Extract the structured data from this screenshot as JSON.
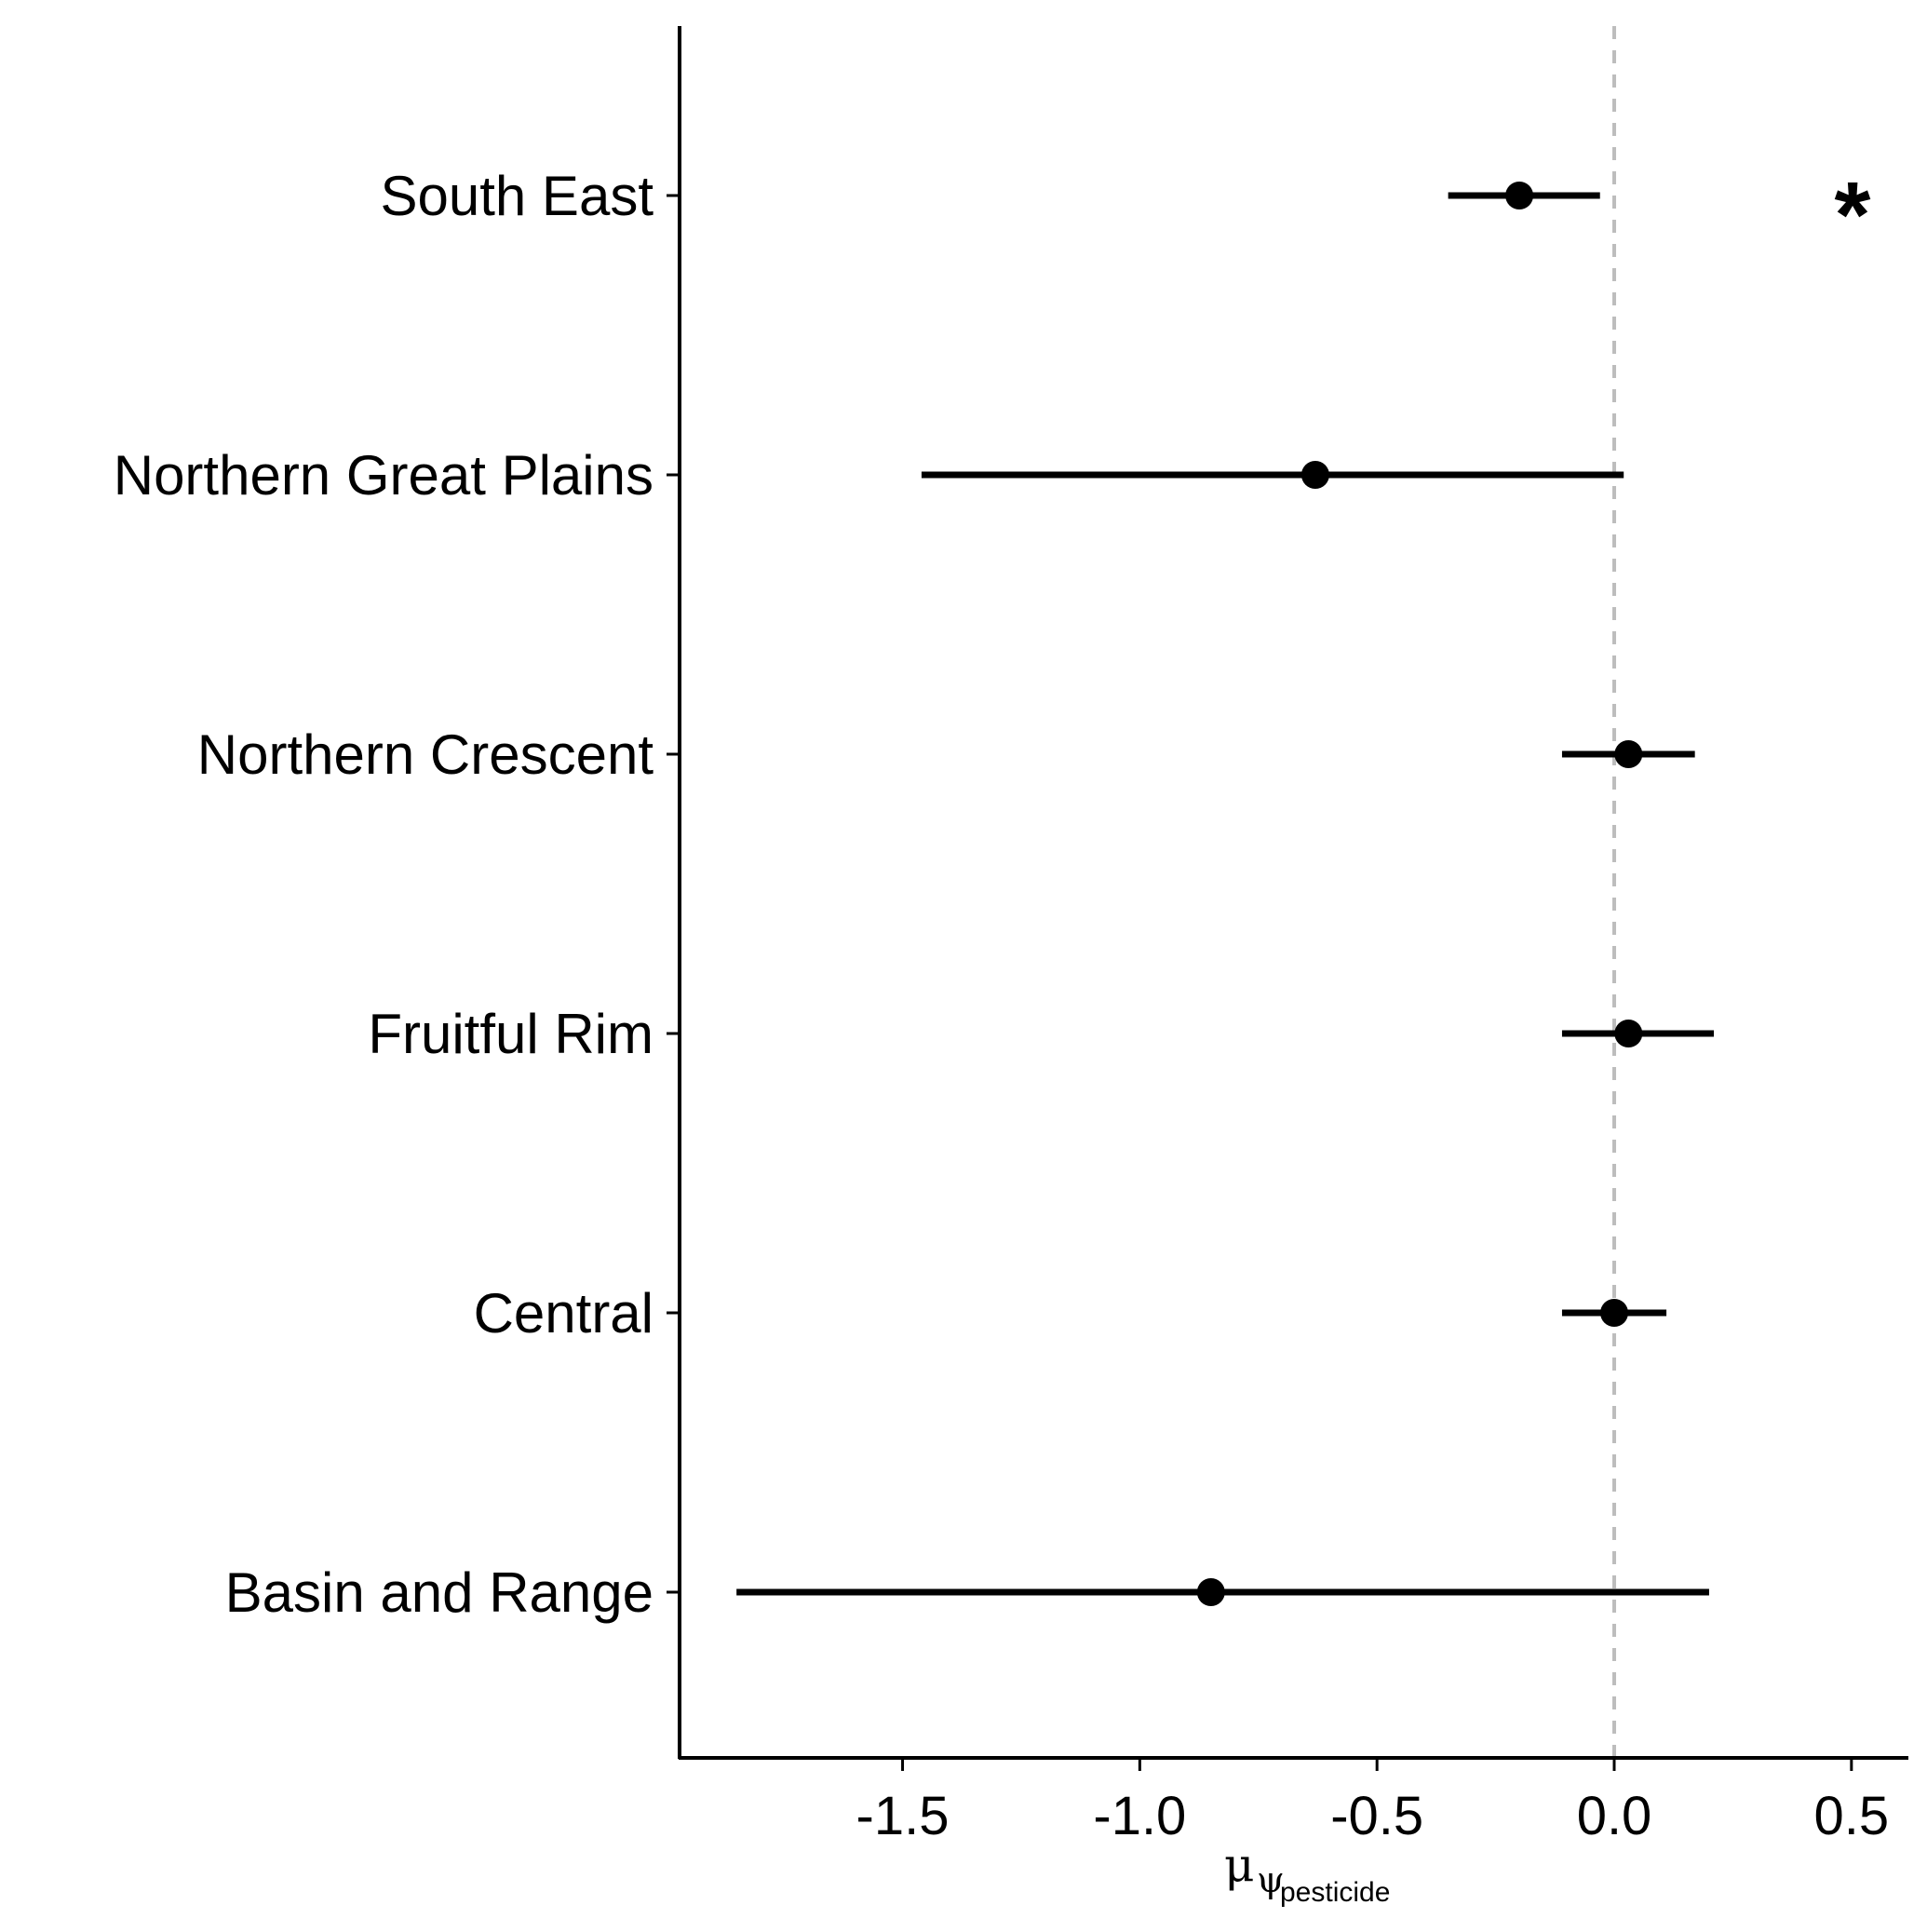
{
  "chart_data": {
    "type": "forest",
    "categories": [
      "South East",
      "Northern Great Plains",
      "Northern Crescent",
      "Fruitful Rim",
      "Central",
      "Basin and Range"
    ],
    "estimates": [
      -0.2,
      -0.63,
      0.03,
      0.03,
      0.0,
      -0.85
    ],
    "lower": [
      -0.35,
      -1.46,
      -0.11,
      -0.11,
      -0.11,
      -1.85
    ],
    "upper": [
      -0.03,
      0.02,
      0.17,
      0.21,
      0.11,
      0.2
    ],
    "annotations": [
      {
        "category": "South East",
        "text": "*"
      }
    ],
    "xticks": [
      "-1.5",
      "-1.0",
      "-0.5",
      "0.0",
      "0.5"
    ],
    "xlim": [
      -1.97,
      0.62
    ],
    "reference_line": 0.0,
    "xlabel": {
      "main": "μ",
      "sub": "ψ",
      "subsub": "pesticide"
    },
    "ylabel": "",
    "grid": false
  }
}
